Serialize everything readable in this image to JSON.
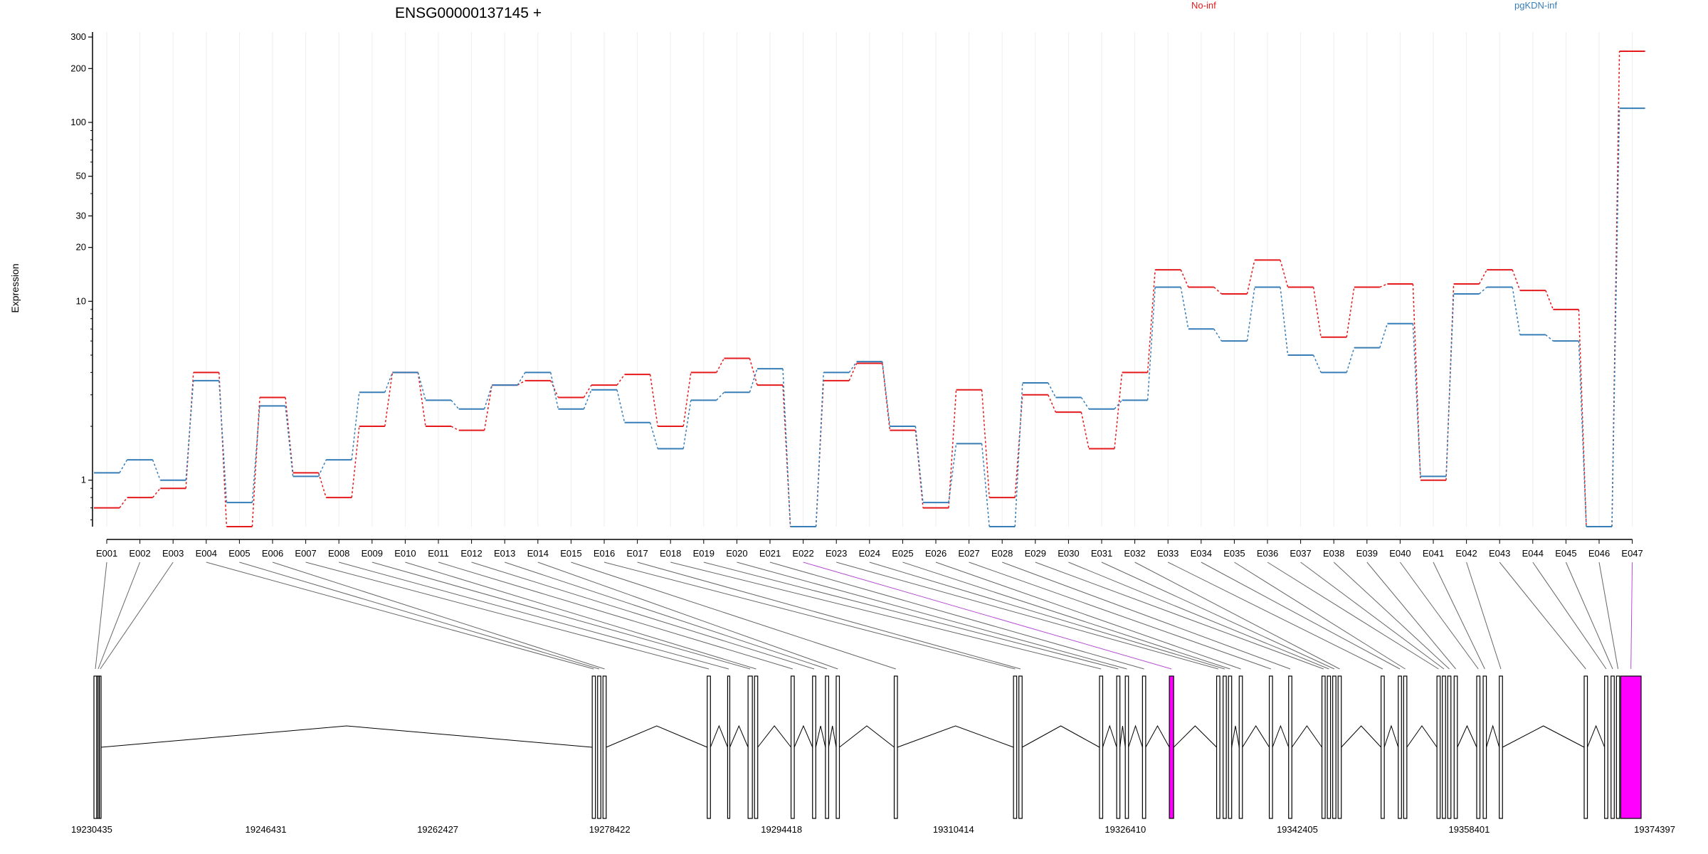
{
  "title": "ENSG00000137145 +",
  "legend": [
    {
      "name": "No-inf",
      "color": "#e41a1c"
    },
    {
      "name": "pgKDN-inf",
      "color": "#377eb8"
    }
  ],
  "highlight_color": "#ff00ff",
  "chart_data": {
    "type": "line",
    "ylabel": "Expression",
    "yscale": "log",
    "ylim": [
      0.55,
      320
    ],
    "yticks": [
      1,
      10,
      20,
      30,
      50,
      100,
      200,
      300
    ],
    "categories": [
      "E001",
      "E002",
      "E003",
      "E004",
      "E005",
      "E006",
      "E007",
      "E008",
      "E009",
      "E010",
      "E011",
      "E012",
      "E013",
      "E014",
      "E015",
      "E016",
      "E017",
      "E018",
      "E019",
      "E020",
      "E021",
      "E022",
      "E023",
      "E024",
      "E025",
      "E026",
      "E027",
      "E028",
      "E029",
      "E030",
      "E031",
      "E032",
      "E033",
      "E034",
      "E035",
      "E036",
      "E037",
      "E038",
      "E039",
      "E040",
      "E041",
      "E042",
      "E043",
      "E044",
      "E045",
      "E046",
      "E047"
    ],
    "series": [
      {
        "name": "No-inf",
        "color": "#e41a1c",
        "values": [
          0.7,
          0.8,
          0.9,
          4.0,
          0.55,
          2.9,
          1.1,
          0.8,
          2.0,
          4.0,
          2.0,
          1.9,
          3.4,
          3.6,
          2.9,
          3.4,
          3.9,
          2.0,
          4.0,
          4.8,
          3.4,
          0.55,
          3.6,
          4.5,
          1.9,
          0.7,
          3.2,
          0.8,
          3.0,
          2.4,
          1.5,
          4.0,
          15.0,
          12.0,
          11.0,
          17.0,
          12.0,
          6.3,
          12.0,
          12.5,
          1.0,
          12.5,
          15.0,
          11.5,
          9.0,
          0.55,
          250.0
        ]
      },
      {
        "name": "pgKDN-inf",
        "color": "#377eb8",
        "values": [
          1.1,
          1.3,
          1.0,
          3.6,
          0.75,
          2.6,
          1.05,
          1.3,
          3.1,
          4.0,
          2.8,
          2.5,
          3.4,
          4.0,
          2.5,
          3.2,
          2.1,
          1.5,
          2.8,
          3.1,
          4.2,
          0.55,
          4.0,
          4.6,
          2.0,
          0.75,
          1.6,
          0.55,
          3.5,
          2.9,
          2.5,
          2.8,
          12.0,
          7.0,
          6.0,
          12.0,
          5.0,
          4.0,
          5.5,
          7.5,
          1.05,
          11.0,
          12.0,
          6.5,
          6.0,
          0.55,
          120.0
        ]
      }
    ],
    "highlighted_exons": [
      "E022",
      "E047"
    ],
    "gene_model": {
      "start": 19230435,
      "end": 19374397,
      "axis_ticks": [
        19230435,
        19246431,
        19262427,
        19278422,
        19294418,
        19310414,
        19326410,
        19342405,
        19358401,
        19374397
      ],
      "exons": [
        [
          19230435,
          19230700
        ],
        [
          19230750,
          19230900
        ],
        [
          19230950,
          19231100
        ],
        [
          19276800,
          19277100
        ],
        [
          19277300,
          19277600
        ],
        [
          19277800,
          19278100
        ],
        [
          19287500,
          19287800
        ],
        [
          19289400,
          19289600
        ],
        [
          19291300,
          19291700
        ],
        [
          19291900,
          19292200
        ],
        [
          19295300,
          19295600
        ],
        [
          19297300,
          19297600
        ],
        [
          19298500,
          19298800
        ],
        [
          19299500,
          19299800
        ],
        [
          19304900,
          19305200
        ],
        [
          19316000,
          19316300
        ],
        [
          19316500,
          19316800
        ],
        [
          19324000,
          19324300
        ],
        [
          19325600,
          19325900
        ],
        [
          19326400,
          19326700
        ],
        [
          19328000,
          19328300
        ],
        [
          19330500,
          19330900
        ],
        [
          19334900,
          19335200
        ],
        [
          19335500,
          19335800
        ],
        [
          19336000,
          19336300
        ],
        [
          19337000,
          19337300
        ],
        [
          19339800,
          19340100
        ],
        [
          19341600,
          19341900
        ],
        [
          19344700,
          19345000
        ],
        [
          19345200,
          19345500
        ],
        [
          19345700,
          19346000
        ],
        [
          19346200,
          19346500
        ],
        [
          19350200,
          19350500
        ],
        [
          19351800,
          19352100
        ],
        [
          19352300,
          19352600
        ],
        [
          19355400,
          19355700
        ],
        [
          19355900,
          19356200
        ],
        [
          19356400,
          19356700
        ],
        [
          19357000,
          19357300
        ],
        [
          19359100,
          19359400
        ],
        [
          19359700,
          19360000
        ],
        [
          19361200,
          19361500
        ],
        [
          19369100,
          19369400
        ],
        [
          19371000,
          19371300
        ],
        [
          19371600,
          19371900
        ],
        [
          19372100,
          19372400
        ],
        [
          19372500,
          19374397
        ]
      ]
    }
  }
}
